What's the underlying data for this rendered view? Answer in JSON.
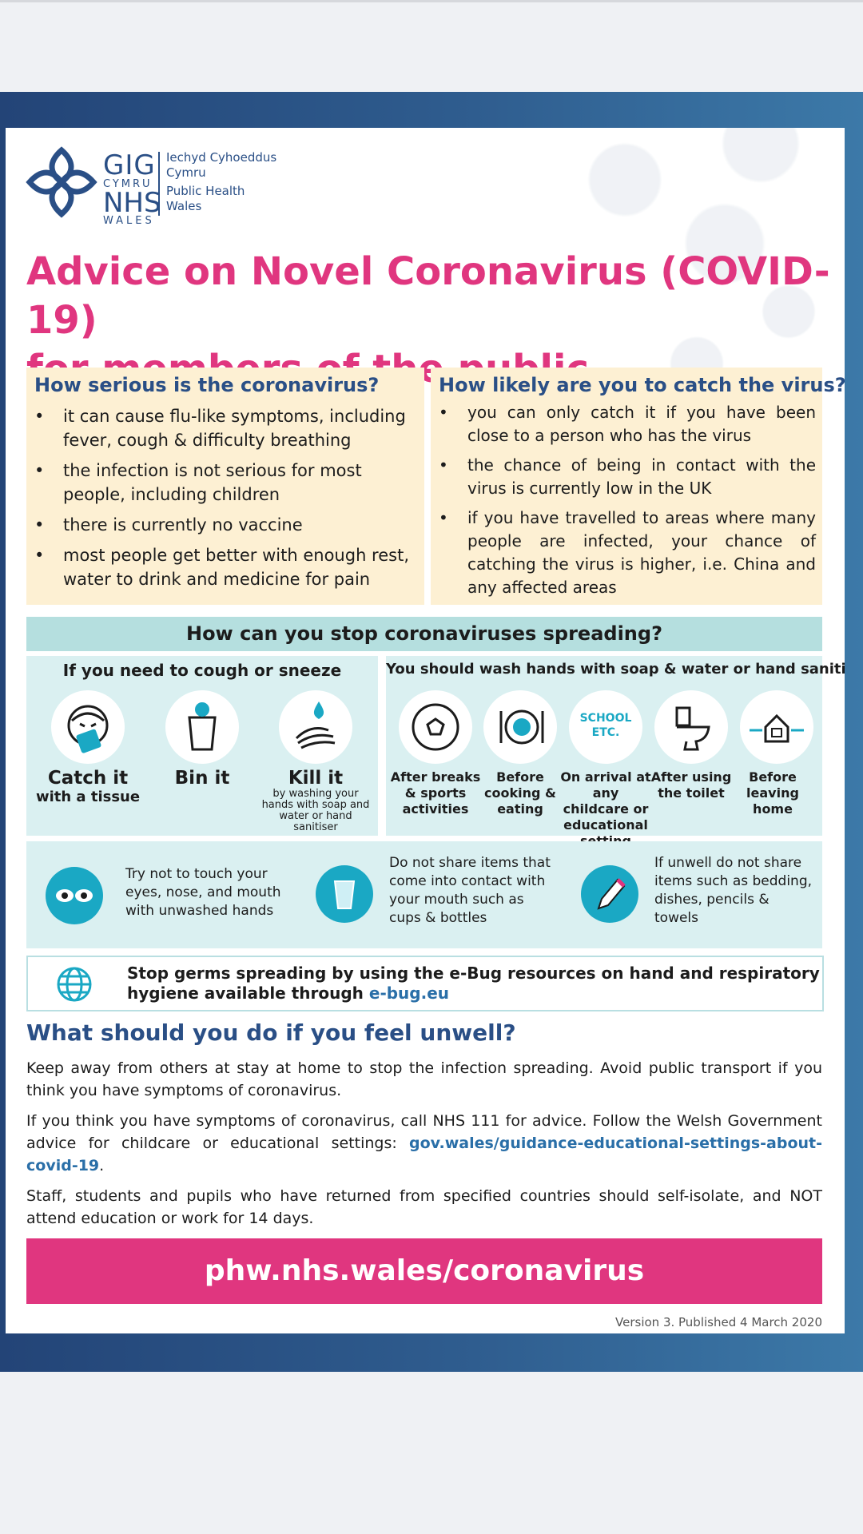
{
  "logo": {
    "gig": "GIG",
    "cymru": "CYMRU",
    "nhs": "NHS",
    "wales": "WALES",
    "org_welsh_1": "Iechyd Cyhoeddus",
    "org_welsh_2": "Cymru",
    "org_english_1": "Public Health",
    "org_english_2": "Wales"
  },
  "title_line1": "Advice on Novel Coronavirus (COVID-19)",
  "title_line2": "for members of the public",
  "serious": {
    "heading": "How serious is the coronavirus?",
    "items": [
      "it can cause flu-like symptoms, including fever, cough & difficulty breathing",
      "the infection is not serious for most people, including children",
      "there is currently no vaccine",
      "most people get better with enough rest, water to drink and medicine for pain"
    ]
  },
  "likely": {
    "heading": "How likely are you to catch the virus?",
    "items": [
      "you can only catch it if you have been close to a person who has the virus",
      "the chance of being in contact with the virus is currently low in the UK",
      "if you have travelled to areas where many people are infected, your chance of catching the virus is higher, i.e. China and any affected areas"
    ]
  },
  "stop_heading": "How can you stop coronaviruses spreading?",
  "cough": {
    "title": "If you need to cough or sneeze",
    "catch_big": "Catch it",
    "catch_small": "with a tissue",
    "bin": "Bin it",
    "kill_big": "Kill it",
    "kill_small": "by washing your hands with soap and water or hand sanitiser"
  },
  "wash": {
    "title": "You should wash hands with soap & water or hand sanitiser",
    "school_icon_text": "SCHOOL ETC.",
    "items": [
      "After breaks & sports activities",
      "Before cooking & eating",
      "On arrival at any childcare or educational setting",
      "After using the toilet",
      "Before leaving home"
    ]
  },
  "tips": [
    "Try not to touch your eyes, nose, and mouth with unwashed hands",
    "Do not share items that come into contact with your mouth such as cups & bottles",
    "If unwell do not share items such as bedding, dishes, pencils & towels"
  ],
  "ebug": {
    "text": "Stop germs spreading by using the e-Bug resources on hand and respiratory hygiene available through ",
    "link": "e-bug.eu"
  },
  "unwell": {
    "heading": "What should you do if you feel unwell?",
    "para1": "Keep away from others at stay at home to stop the infection spreading. Avoid public transport if you think you have symptoms of coronavirus.",
    "para2_text": "If you think you have symptoms of coronavirus, call NHS 111 for advice. Follow the Welsh Government advice for childcare or educational settings: ",
    "para2_link": "gov.wales/guidance-educational-settings-about-covid-19",
    "para2_end": ".",
    "para3": "Staff, students and pupils who have returned from specified countries should self-isolate, and NOT attend education or work for 14 days."
  },
  "website": "phw.nhs.wales/coronavirus",
  "version": "Version 3. Published  4 March 2020",
  "colors": {
    "pink": "#e0367f",
    "navy": "#2a4f86",
    "teal": "#1aa8c4",
    "cream": "#fdf0d3",
    "pale_teal": "#daf0f1"
  }
}
